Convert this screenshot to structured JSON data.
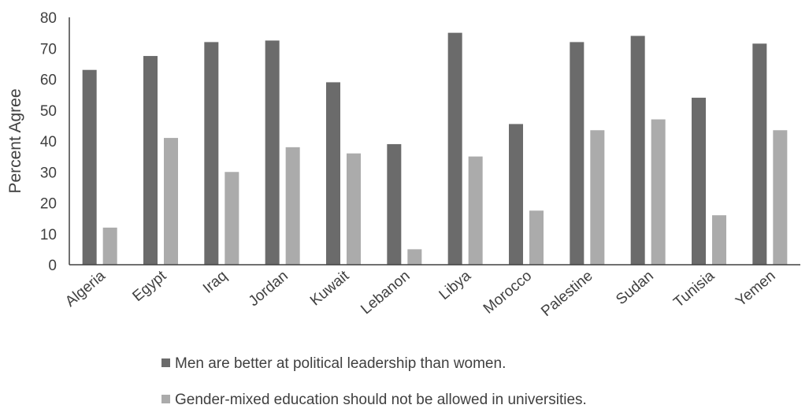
{
  "chart_data": {
    "type": "bar",
    "title": "",
    "xlabel": "",
    "ylabel": "Percent Agree",
    "ylim": [
      0,
      80
    ],
    "yticks": [
      0,
      10,
      20,
      30,
      40,
      50,
      60,
      70,
      80
    ],
    "grid": false,
    "legend_position": "bottom",
    "categories": [
      "Algeria",
      "Egypt",
      "Iraq",
      "Jordan",
      "Kuwait",
      "Lebanon",
      "Libya",
      "Morocco",
      "Palestine",
      "Sudan",
      "Tunisia",
      "Yemen"
    ],
    "series": [
      {
        "name": "Men are better at political leadership than women.",
        "color": "#6b6b6b",
        "values": [
          63,
          67.5,
          72,
          72.5,
          59,
          39,
          75,
          45.5,
          72,
          74,
          54,
          71.5
        ]
      },
      {
        "name": "Gender-mixed education should not be allowed in universities.",
        "color": "#ababab",
        "values": [
          12,
          41,
          30,
          38,
          36,
          5,
          35,
          17.5,
          43.5,
          47,
          16,
          43.5
        ]
      }
    ]
  }
}
